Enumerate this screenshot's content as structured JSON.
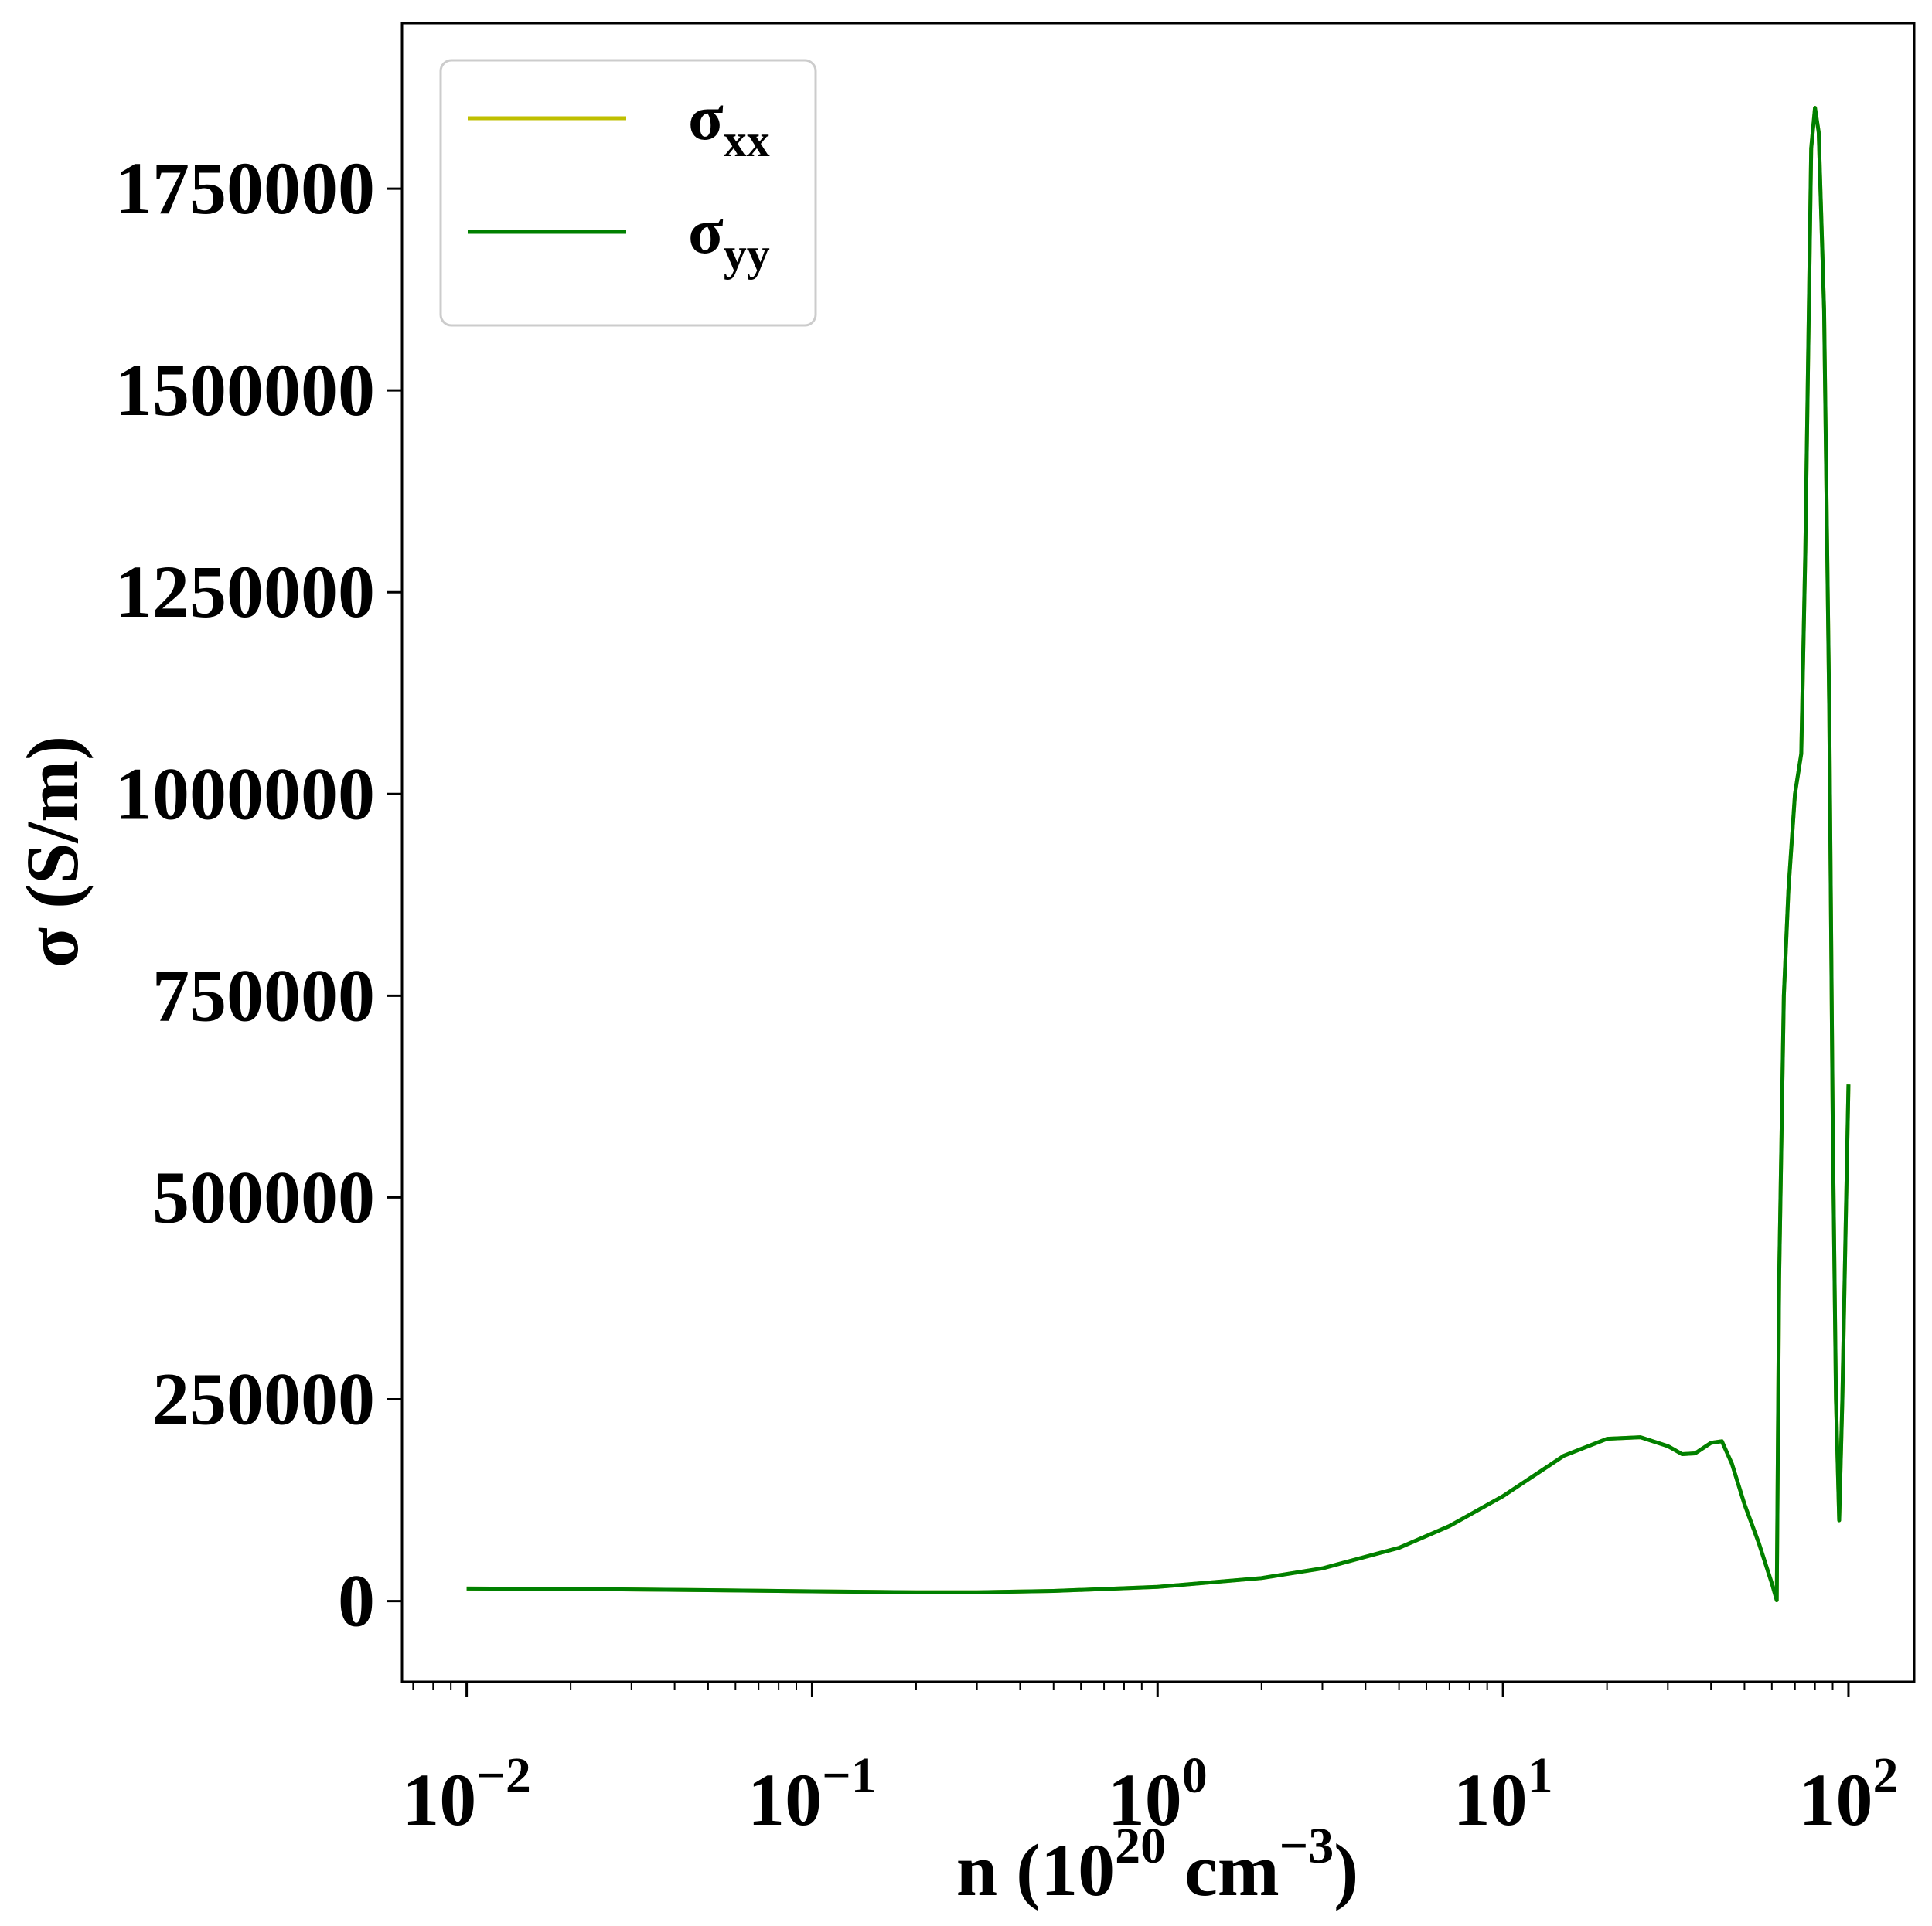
{
  "chart_data": {
    "type": "line",
    "title": "",
    "xlabel": {
      "base": "n (10",
      "sup1": "20",
      "mid": " cm",
      "sup2": "−3",
      "end": ")"
    },
    "ylabel": "σ (S/m)",
    "xscale": "log",
    "xlim": [
      0.0065,
      155
    ],
    "ylim": [
      -100000,
      1955000
    ],
    "grid": false,
    "legend_placement": "upper-left",
    "xticks": [
      {
        "value": 0.01,
        "base": "10",
        "exp": "−2"
      },
      {
        "value": 0.1,
        "base": "10",
        "exp": "−1"
      },
      {
        "value": 1,
        "base": "10",
        "exp": "0"
      },
      {
        "value": 10,
        "base": "10",
        "exp": "1"
      },
      {
        "value": 100,
        "base": "10",
        "exp": "2"
      }
    ],
    "yticks": [
      {
        "value": 0,
        "label": "0"
      },
      {
        "value": 250000,
        "label": "250000"
      },
      {
        "value": 500000,
        "label": "500000"
      },
      {
        "value": 750000,
        "label": "750000"
      },
      {
        "value": 1000000,
        "label": "1000000"
      },
      {
        "value": 1250000,
        "label": "1250000"
      },
      {
        "value": 1500000,
        "label": "1500000"
      },
      {
        "value": 1750000,
        "label": "1750000"
      }
    ],
    "series": [
      {
        "name": "σxx",
        "name_base": "σ",
        "name_sub": "xx",
        "color": "#bfbf00",
        "points": [
          [
            0.01,
            15500
          ],
          [
            0.02,
            15000
          ],
          [
            0.05,
            13500
          ],
          [
            0.1,
            12000
          ],
          [
            0.2,
            10800
          ],
          [
            0.3,
            10800
          ],
          [
            0.5,
            12500
          ],
          [
            1,
            17500
          ],
          [
            2,
            28500
          ],
          [
            3,
            40500
          ],
          [
            5,
            66000
          ],
          [
            7,
            93000
          ],
          [
            10,
            130000
          ],
          [
            15,
            180000
          ],
          [
            20,
            201000
          ],
          [
            25,
            203000
          ],
          [
            30,
            192000
          ],
          [
            33,
            182000
          ],
          [
            36,
            183000
          ],
          [
            40,
            196000
          ],
          [
            43,
            198000
          ],
          [
            46,
            170000
          ],
          [
            50,
            120000
          ],
          [
            55,
            72000
          ],
          [
            60,
            22000
          ],
          [
            62,
            1000
          ],
          [
            63,
            400000
          ],
          [
            65,
            750000
          ],
          [
            67,
            880000
          ],
          [
            70,
            1000000
          ],
          [
            73,
            1050000
          ],
          [
            75,
            1300000
          ],
          [
            78,
            1800000
          ],
          [
            80,
            1850000
          ],
          [
            82,
            1820000
          ],
          [
            85,
            1600000
          ],
          [
            88,
            1100000
          ],
          [
            90,
            600000
          ],
          [
            92,
            250000
          ],
          [
            94,
            100000
          ],
          [
            96,
            250000
          ],
          [
            98,
            450000
          ],
          [
            100,
            640000
          ]
        ]
      },
      {
        "name": "σyy",
        "name_base": "σ",
        "name_sub": "yy",
        "color": "#008000",
        "points": [
          [
            0.01,
            15500
          ],
          [
            0.02,
            15000
          ],
          [
            0.05,
            13500
          ],
          [
            0.1,
            12000
          ],
          [
            0.2,
            10800
          ],
          [
            0.3,
            10800
          ],
          [
            0.5,
            12500
          ],
          [
            1,
            17500
          ],
          [
            2,
            28500
          ],
          [
            3,
            40500
          ],
          [
            5,
            66000
          ],
          [
            7,
            93000
          ],
          [
            10,
            130000
          ],
          [
            15,
            180000
          ],
          [
            20,
            201000
          ],
          [
            25,
            203000
          ],
          [
            30,
            192000
          ],
          [
            33,
            182000
          ],
          [
            36,
            183000
          ],
          [
            40,
            196000
          ],
          [
            43,
            198000
          ],
          [
            46,
            170000
          ],
          [
            50,
            120000
          ],
          [
            55,
            72000
          ],
          [
            60,
            22000
          ],
          [
            62,
            1000
          ],
          [
            63,
            400000
          ],
          [
            65,
            750000
          ],
          [
            67,
            880000
          ],
          [
            70,
            1000000
          ],
          [
            73,
            1050000
          ],
          [
            75,
            1300000
          ],
          [
            78,
            1800000
          ],
          [
            80,
            1850000
          ],
          [
            82,
            1820000
          ],
          [
            85,
            1600000
          ],
          [
            88,
            1100000
          ],
          [
            90,
            600000
          ],
          [
            92,
            250000
          ],
          [
            94,
            100000
          ],
          [
            96,
            250000
          ],
          [
            98,
            450000
          ],
          [
            100,
            640000
          ]
        ]
      }
    ]
  }
}
